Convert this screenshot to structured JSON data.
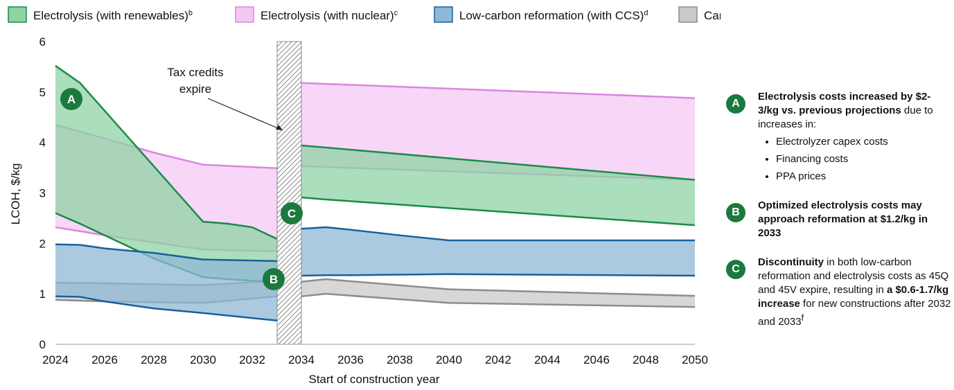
{
  "chart_data": {
    "type": "range-area",
    "xlabel": "Start of construction year",
    "ylabel": "LCOH, $/kg",
    "xlim": [
      2024,
      2050
    ],
    "xticks": [
      2024,
      2026,
      2028,
      2030,
      2032,
      2034,
      2036,
      2038,
      2040,
      2042,
      2044,
      2046,
      2048,
      2050
    ],
    "ylim": [
      0,
      6
    ],
    "yticks": [
      0,
      1,
      2,
      3,
      4,
      5,
      6
    ],
    "annotation": "Tax credits expire",
    "badges": [
      "A",
      "B",
      "C"
    ],
    "series": [
      {
        "name": "Electrolysis (with nuclear)",
        "note": "c",
        "color": "#f4c8f5",
        "stroke": "#d986df",
        "segments": [
          {
            "x": [
              2024,
              2026,
              2028,
              2030,
              2033
            ],
            "low": [
              2.32,
              2.16,
              2.02,
              1.88,
              1.84
            ],
            "high": [
              4.35,
              4.08,
              3.8,
              3.56,
              3.49
            ]
          },
          {
            "x": [
              2034,
              2050
            ],
            "low": [
              3.53,
              3.26
            ],
            "high": [
              5.18,
              4.88
            ]
          }
        ]
      },
      {
        "name": "Carbon-intensive reformation (no CCS)",
        "note": "e",
        "color": "#c9c9c9",
        "stroke": "#8c8c8c",
        "segments": [
          {
            "x": [
              2024,
              2026,
              2030,
              2033
            ],
            "low": [
              0.88,
              0.85,
              0.82,
              0.95
            ],
            "high": [
              1.22,
              1.21,
              1.17,
              1.26
            ]
          },
          {
            "x": [
              2034,
              2035,
              2040,
              2050
            ],
            "low": [
              0.95,
              1.0,
              0.82,
              0.74
            ],
            "high": [
              1.24,
              1.29,
              1.09,
              0.96
            ]
          }
        ]
      },
      {
        "name": "Electrolysis (with renewables)",
        "note": "b",
        "color": "#8fd3a6",
        "stroke": "#1a8a46",
        "segments": [
          {
            "x": [
              2024,
              2025,
              2026,
              2028,
              2030,
              2031,
              2032,
              2033
            ],
            "low": [
              2.6,
              2.39,
              2.16,
              1.7,
              1.33,
              1.29,
              1.26,
              1.24
            ],
            "high": [
              5.52,
              5.18,
              4.63,
              3.53,
              2.43,
              2.39,
              2.32,
              2.09
            ]
          },
          {
            "x": [
              2034,
              2035,
              2050
            ],
            "low": [
              2.91,
              2.87,
              2.36
            ],
            "high": [
              3.94,
              3.9,
              3.26
            ]
          }
        ]
      },
      {
        "name": "Low-carbon reformation (with CCS)",
        "note": "d",
        "color": "#8fb8d6",
        "stroke": "#1a5f9a",
        "segments": [
          {
            "x": [
              2024,
              2025,
              2026,
              2028,
              2030,
              2033
            ],
            "low": [
              0.95,
              0.94,
              0.85,
              0.71,
              0.62,
              0.47
            ],
            "high": [
              1.98,
              1.97,
              1.9,
              1.81,
              1.68,
              1.65
            ]
          },
          {
            "x": [
              2034,
              2035,
              2036,
              2038,
              2040,
              2050
            ],
            "low": [
              1.36,
              1.37,
              1.37,
              1.38,
              1.39,
              1.36
            ],
            "high": [
              2.29,
              2.32,
              2.27,
              2.16,
              2.06,
              2.06
            ]
          }
        ]
      }
    ]
  },
  "legend_order": [
    2,
    0,
    3,
    1
  ],
  "notes": [
    {
      "runs": [
        {
          "text": "Electrolysis costs increased by $2-3/kg vs. previous projections",
          "bold": true
        },
        {
          "text": " due to increases in:"
        }
      ],
      "bullets": [
        "Electrolyzer capex costs",
        "Financing costs",
        "PPA prices"
      ]
    },
    {
      "runs": [
        {
          "text": "Optimized electrolysis costs may approach reformation at $1.2/kg in 2033",
          "bold": true
        }
      ]
    },
    {
      "runs": [
        {
          "text": "Discontinuity",
          "bold": true
        },
        {
          "text": " in both low-carbon reformation and electrolysis costs as 45Q and 45V expire, resulting in "
        },
        {
          "text": "a $0.6-1.7/kg increase",
          "bold": true
        },
        {
          "text": " for new constructions after 2032 and 2033"
        },
        {
          "text": "f",
          "sup": true
        }
      ]
    }
  ]
}
